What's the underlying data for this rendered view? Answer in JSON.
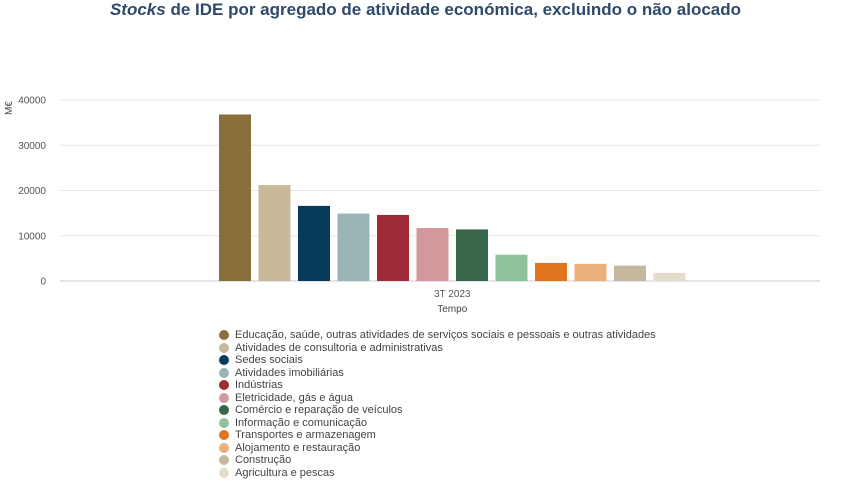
{
  "title": {
    "italic": "Stocks",
    "rest": " de IDE por agregado de atividade económica, excluindo o não alocado"
  },
  "chart_data": {
    "type": "bar",
    "title": "Stocks de IDE por agregado de atividade económica, excluindo o não alocado",
    "xlabel": "Tempo",
    "ylabel": "M€",
    "categories": [
      "3T 2023"
    ],
    "ylim": [
      0,
      40000
    ],
    "yticks": [
      "0",
      "10000",
      "20000",
      "30000",
      "40000"
    ],
    "grid": true,
    "legend_position": "bottom",
    "series": [
      {
        "name": "Educação, saúde, outras atividades de serviços sociais e pessoais e outras atividades",
        "values": [
          36800
        ],
        "color": "#8b6f3a"
      },
      {
        "name": "Atividades de consultoria e administrativas",
        "values": [
          21200
        ],
        "color": "#c9b99a"
      },
      {
        "name": "Sedes sociais",
        "values": [
          16600
        ],
        "color": "#063c5a"
      },
      {
        "name": "Atividades imobiliárias",
        "values": [
          14900
        ],
        "color": "#9bb5b6"
      },
      {
        "name": "Indústrias",
        "values": [
          14600
        ],
        "color": "#9e2b36"
      },
      {
        "name": "Eletricidade, gás e água",
        "values": [
          11700
        ],
        "color": "#d3989b"
      },
      {
        "name": "Comércio e reparação de veículos",
        "values": [
          11400
        ],
        "color": "#37664a"
      },
      {
        "name": "Informação e comunicação",
        "values": [
          5800
        ],
        "color": "#8fc29b"
      },
      {
        "name": "Transportes e armazenagem",
        "values": [
          4000
        ],
        "color": "#e0741f"
      },
      {
        "name": "Alojamento e restauração",
        "values": [
          3800
        ],
        "color": "#ecb07c"
      },
      {
        "name": "Construção",
        "values": [
          3400
        ],
        "color": "#c6b79f"
      },
      {
        "name": "Agricultura e pescas",
        "values": [
          1800
        ],
        "color": "#e5dcc9"
      }
    ]
  }
}
